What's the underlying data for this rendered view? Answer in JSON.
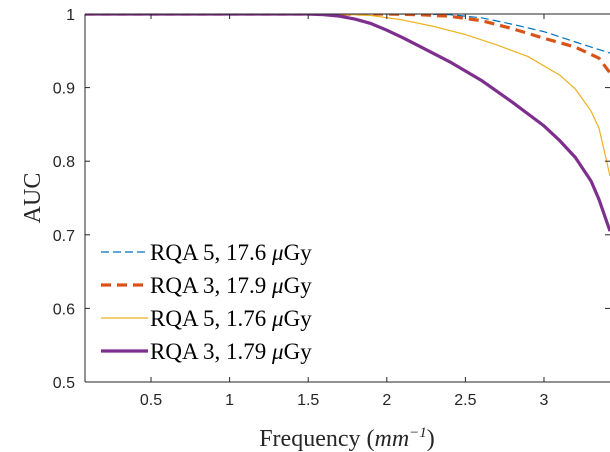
{
  "chart_data": {
    "type": "line",
    "title": "",
    "xlabel": "Frequency",
    "xlabel_unit_base": "mm",
    "xlabel_unit_exp": "−1",
    "ylabel": "AUC",
    "xlim": [
      0.08,
      3.42
    ],
    "ylim": [
      0.5,
      1.0
    ],
    "xticks": [
      0.5,
      1,
      1.5,
      2,
      2.5,
      3
    ],
    "xtick_labels": [
      "0.5",
      "1",
      "1.5",
      "2",
      "2.5",
      "3"
    ],
    "yticks": [
      0.5,
      0.6,
      0.7,
      0.8,
      0.9,
      1.0
    ],
    "ytick_labels": [
      "0.5",
      "0.6",
      "0.7",
      "0.8",
      "0.9",
      "1"
    ],
    "grid": false,
    "legend_position": "bottom-left",
    "series": [
      {
        "name": "RQA 5, 17.6 μGy",
        "name_prefix": "RQA 5, 17.6 ",
        "name_mu": "μ",
        "name_suffix": "Gy",
        "color": "#0072BD",
        "style": "dashed-thin",
        "x": [
          0.08,
          1.5,
          1.8,
          2.0,
          2.2,
          2.4,
          2.6,
          2.8,
          3.0,
          3.2,
          3.3,
          3.42
        ],
        "y": [
          1.0,
          1.0,
          1.0,
          1.0,
          1.0,
          0.999,
          0.995,
          0.986,
          0.976,
          0.962,
          0.955,
          0.947
        ]
      },
      {
        "name": "RQA 3, 17.9 μGy",
        "name_prefix": "RQA 3, 17.9 ",
        "name_mu": "μ",
        "name_suffix": "Gy",
        "color": "#D95319",
        "style": "dashed-thick",
        "x": [
          0.08,
          1.5,
          1.8,
          2.0,
          2.2,
          2.4,
          2.6,
          2.8,
          3.0,
          3.2,
          3.35,
          3.42
        ],
        "y": [
          1.0,
          1.0,
          1.0,
          1.0,
          0.999,
          0.997,
          0.991,
          0.98,
          0.967,
          0.955,
          0.94,
          0.92
        ]
      },
      {
        "name": "RQA 5, 1.76 μGy",
        "name_prefix": "RQA 5, 1.76 ",
        "name_mu": "μ",
        "name_suffix": "Gy",
        "color": "#EDB120",
        "style": "solid-thin",
        "x": [
          0.08,
          1.5,
          1.7,
          1.9,
          2.1,
          2.3,
          2.5,
          2.7,
          2.9,
          3.1,
          3.2,
          3.3,
          3.35,
          3.42
        ],
        "y": [
          1.0,
          1.0,
          1.0,
          0.998,
          0.992,
          0.983,
          0.972,
          0.958,
          0.942,
          0.917,
          0.898,
          0.868,
          0.845,
          0.78
        ]
      },
      {
        "name": "RQA 3, 1.79 μGy",
        "name_prefix": "RQA 3, 1.79 ",
        "name_mu": "μ",
        "name_suffix": "Gy",
        "color": "#7E2F8E",
        "style": "solid-thick",
        "x": [
          0.08,
          1.5,
          1.6,
          1.7,
          1.8,
          1.9,
          2.0,
          2.1,
          2.2,
          2.4,
          2.6,
          2.8,
          3.0,
          3.1,
          3.2,
          3.3,
          3.35,
          3.42
        ],
        "y": [
          1.0,
          1.0,
          0.999,
          0.997,
          0.993,
          0.987,
          0.978,
          0.968,
          0.957,
          0.935,
          0.91,
          0.88,
          0.848,
          0.828,
          0.805,
          0.773,
          0.748,
          0.705
        ]
      }
    ]
  }
}
